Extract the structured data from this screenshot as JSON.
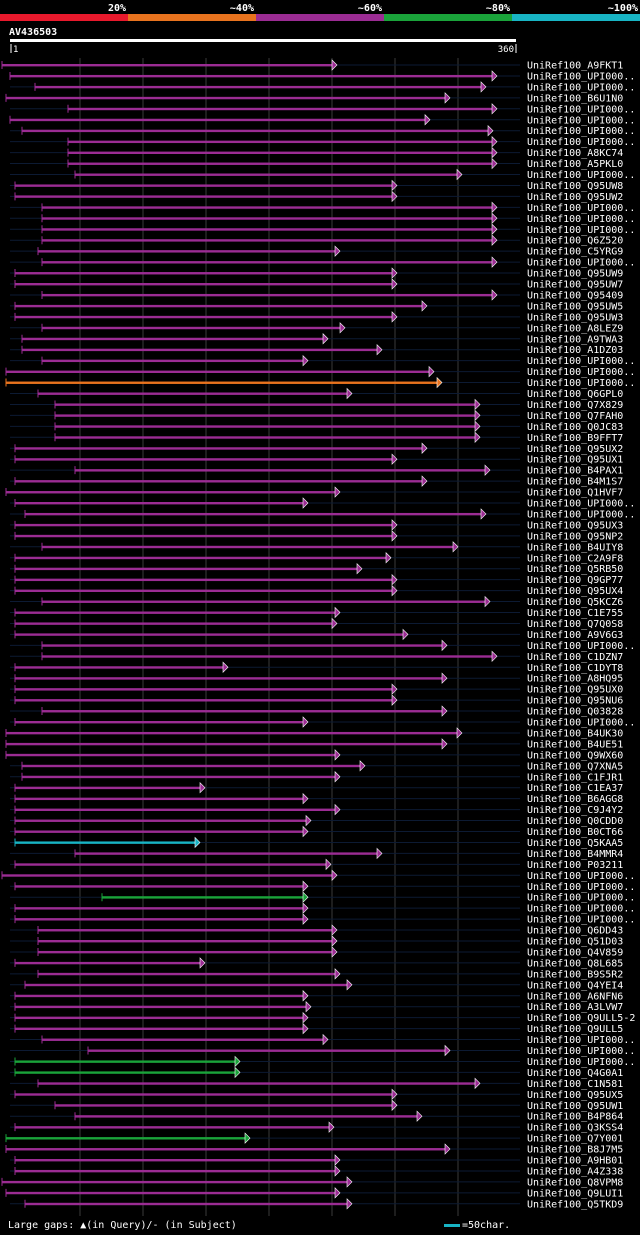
{
  "query_id": "AV436503",
  "identity_legend": {
    "labels": [
      "20%",
      "~40%",
      "~60%",
      "~80%",
      "~100%"
    ],
    "colors": [
      "#e8192c",
      "#e8731e",
      "#9b2c93",
      "#1aa33a",
      "#18b4c4"
    ]
  },
  "ruler": {
    "start_label": "1",
    "end_label": "360"
  },
  "footer": {
    "large_gaps_text": "Large gaps: ▲(in Query)/- (in Subject)",
    "scale_text": "=50char."
  },
  "chart_data": {
    "type": "alignment",
    "query_length": 360,
    "hits": [
      {
        "name": "UniRef100_A9FKT1",
        "start": 2,
        "end": 337,
        "identity": "~60%"
      },
      {
        "name": "UniRef100_UPI000..",
        "start": 10,
        "end": 497,
        "identity": "~60%"
      },
      {
        "name": "UniRef100_UPI000..",
        "start": 35,
        "end": 486,
        "identity": "~60%"
      },
      {
        "name": "UniRef100_B6U1N0",
        "start": 6,
        "end": 450,
        "identity": "~60%"
      },
      {
        "name": "UniRef100_UPI000..",
        "start": 68,
        "end": 497,
        "identity": "~60%"
      },
      {
        "name": "UniRef100_UPI000..",
        "start": 10,
        "end": 430,
        "identity": "~60%"
      },
      {
        "name": "UniRef100_UPI000..",
        "start": 22,
        "end": 493,
        "identity": "~60%"
      },
      {
        "name": "UniRef100_UPI000..",
        "start": 68,
        "end": 497,
        "identity": "~60%"
      },
      {
        "name": "UniRef100_A8KC74",
        "start": 68,
        "end": 497,
        "identity": "~60%"
      },
      {
        "name": "UniRef100_A5PKL0",
        "start": 68,
        "end": 497,
        "identity": "~60%"
      },
      {
        "name": "UniRef100_UPI000..",
        "start": 75,
        "end": 462,
        "identity": "~60%"
      },
      {
        "name": "UniRef100_Q95UW8",
        "start": 15,
        "end": 397,
        "identity": "~60%"
      },
      {
        "name": "UniRef100_Q95UW2",
        "start": 15,
        "end": 397,
        "identity": "~60%"
      },
      {
        "name": "UniRef100_UPI000..",
        "start": 42,
        "end": 497,
        "identity": "~60%"
      },
      {
        "name": "UniRef100_UPI000..",
        "start": 42,
        "end": 497,
        "identity": "~60%"
      },
      {
        "name": "UniRef100_UPI000..",
        "start": 42,
        "end": 497,
        "identity": "~60%"
      },
      {
        "name": "UniRef100_Q6Z520",
        "start": 42,
        "end": 497,
        "identity": "~60%"
      },
      {
        "name": "UniRef100_C5YRG9",
        "start": 38,
        "end": 340,
        "identity": "~60%"
      },
      {
        "name": "UniRef100_UPI000..",
        "start": 42,
        "end": 497,
        "identity": "~60%"
      },
      {
        "name": "UniRef100_Q95UW9",
        "start": 15,
        "end": 397,
        "identity": "~60%"
      },
      {
        "name": "UniRef100_Q95UW7",
        "start": 15,
        "end": 397,
        "identity": "~60%"
      },
      {
        "name": "UniRef100_Q95409",
        "start": 42,
        "end": 497,
        "identity": "~60%"
      },
      {
        "name": "UniRef100_Q95UW5",
        "start": 15,
        "end": 427,
        "identity": "~60%"
      },
      {
        "name": "UniRef100_Q95UW3",
        "start": 15,
        "end": 397,
        "identity": "~60%"
      },
      {
        "name": "UniRef100_A8LEZ9",
        "start": 42,
        "end": 345,
        "identity": "~60%"
      },
      {
        "name": "UniRef100_A9TWA3",
        "start": 22,
        "end": 328,
        "identity": "~60%"
      },
      {
        "name": "UniRef100_A1DZ03",
        "start": 22,
        "end": 382,
        "identity": "~60%"
      },
      {
        "name": "UniRef100_UPI000..",
        "start": 42,
        "end": 308,
        "identity": "~60%"
      },
      {
        "name": "UniRef100_UPI000..",
        "start": 6,
        "end": 434,
        "identity": "~60%"
      },
      {
        "name": "UniRef100_UPI000..",
        "start": 6,
        "end": 442,
        "identity": "~40%"
      },
      {
        "name": "UniRef100_Q6GPL0",
        "start": 38,
        "end": 352,
        "identity": "~60%"
      },
      {
        "name": "UniRef100_Q7X829",
        "start": 55,
        "end": 480,
        "identity": "~60%"
      },
      {
        "name": "UniRef100_Q7FAH0",
        "start": 55,
        "end": 480,
        "identity": "~60%"
      },
      {
        "name": "UniRef100_Q0JC83",
        "start": 55,
        "end": 480,
        "identity": "~60%"
      },
      {
        "name": "UniRef100_B9FFT7",
        "start": 55,
        "end": 480,
        "identity": "~60%"
      },
      {
        "name": "UniRef100_Q95UX2",
        "start": 15,
        "end": 427,
        "identity": "~60%"
      },
      {
        "name": "UniRef100_Q95UX1",
        "start": 15,
        "end": 397,
        "identity": "~60%"
      },
      {
        "name": "UniRef100_B4PAX1",
        "start": 75,
        "end": 490,
        "identity": "~60%"
      },
      {
        "name": "UniRef100_B4M1S7",
        "start": 15,
        "end": 427,
        "identity": "~60%"
      },
      {
        "name": "UniRef100_Q1HVF7",
        "start": 6,
        "end": 340,
        "identity": "~60%"
      },
      {
        "name": "UniRef100_UPI000..",
        "start": 15,
        "end": 308,
        "identity": "~60%"
      },
      {
        "name": "UniRef100_UPI000..",
        "start": 25,
        "end": 486,
        "identity": "~60%"
      },
      {
        "name": "UniRef100_Q95UX3",
        "start": 15,
        "end": 397,
        "identity": "~60%"
      },
      {
        "name": "UniRef100_Q95NP2",
        "start": 15,
        "end": 397,
        "identity": "~60%"
      },
      {
        "name": "UniRef100_B4UIY8",
        "start": 42,
        "end": 458,
        "identity": "~60%"
      },
      {
        "name": "UniRef100_C2A9F8",
        "start": 15,
        "end": 391,
        "identity": "~60%"
      },
      {
        "name": "UniRef100_Q5RB50",
        "start": 15,
        "end": 362,
        "identity": "~60%"
      },
      {
        "name": "UniRef100_Q9GP77",
        "start": 15,
        "end": 397,
        "identity": "~60%"
      },
      {
        "name": "UniRef100_Q95UX4",
        "start": 15,
        "end": 397,
        "identity": "~60%"
      },
      {
        "name": "UniRef100_Q5KCZ6",
        "start": 42,
        "end": 490,
        "identity": "~60%"
      },
      {
        "name": "UniRef100_C1E755",
        "start": 15,
        "end": 340,
        "identity": "~60%"
      },
      {
        "name": "UniRef100_Q7Q0S8",
        "start": 15,
        "end": 337,
        "identity": "~60%"
      },
      {
        "name": "UniRef100_A9V6G3",
        "start": 15,
        "end": 408,
        "identity": "~60%"
      },
      {
        "name": "UniRef100_UPI000..",
        "start": 42,
        "end": 447,
        "identity": "~60%"
      },
      {
        "name": "UniRef100_C1DZN7",
        "start": 42,
        "end": 497,
        "identity": "~60%"
      },
      {
        "name": "UniRef100_C1DYT8",
        "start": 15,
        "end": 228,
        "identity": "~60%"
      },
      {
        "name": "UniRef100_A8HQ95",
        "start": 15,
        "end": 447,
        "identity": "~60%"
      },
      {
        "name": "UniRef100_Q95UX0",
        "start": 15,
        "end": 397,
        "identity": "~60%"
      },
      {
        "name": "UniRef100_Q95NU6",
        "start": 15,
        "end": 397,
        "identity": "~60%"
      },
      {
        "name": "UniRef100_Q03828",
        "start": 42,
        "end": 447,
        "identity": "~60%"
      },
      {
        "name": "UniRef100_UPI000..",
        "start": 15,
        "end": 308,
        "identity": "~60%"
      },
      {
        "name": "UniRef100_B4UK30",
        "start": 6,
        "end": 462,
        "identity": "~60%"
      },
      {
        "name": "UniRef100_B4UE51",
        "start": 6,
        "end": 447,
        "identity": "~60%"
      },
      {
        "name": "UniRef100_Q9WX60",
        "start": 6,
        "end": 340,
        "identity": "~60%"
      },
      {
        "name": "UniRef100_Q7XNA5",
        "start": 22,
        "end": 365,
        "identity": "~60%"
      },
      {
        "name": "UniRef100_C1FJR1",
        "start": 22,
        "end": 340,
        "identity": "~60%"
      },
      {
        "name": "UniRef100_C1EA37",
        "start": 15,
        "end": 205,
        "identity": "~60%"
      },
      {
        "name": "UniRef100_B6AGG8",
        "start": 15,
        "end": 308,
        "identity": "~60%"
      },
      {
        "name": "UniRef100_C9J4Y2",
        "start": 15,
        "end": 340,
        "identity": "~60%"
      },
      {
        "name": "UniRef100_Q0CDD0",
        "start": 15,
        "end": 311,
        "identity": "~60%"
      },
      {
        "name": "UniRef100_B0CT66",
        "start": 15,
        "end": 308,
        "identity": "~60%"
      },
      {
        "name": "UniRef100_Q5KAA5",
        "start": 15,
        "end": 200,
        "identity": "~100%"
      },
      {
        "name": "UniRef100_B4MMR4",
        "start": 75,
        "end": 382,
        "identity": "~60%"
      },
      {
        "name": "UniRef100_P03211",
        "start": 15,
        "end": 331,
        "identity": "~60%"
      },
      {
        "name": "UniRef100_UPI000..",
        "start": 2,
        "end": 337,
        "identity": "~60%"
      },
      {
        "name": "UniRef100_UPI000..",
        "start": 15,
        "end": 308,
        "identity": "~60%"
      },
      {
        "name": "UniRef100_UPI000..",
        "start": 102,
        "end": 308,
        "identity": "~80%"
      },
      {
        "name": "UniRef100_UPI000..",
        "start": 15,
        "end": 308,
        "identity": "~60%"
      },
      {
        "name": "UniRef100_UPI000..",
        "start": 15,
        "end": 308,
        "identity": "~60%"
      },
      {
        "name": "UniRef100_Q6DD43",
        "start": 38,
        "end": 337,
        "identity": "~60%"
      },
      {
        "name": "UniRef100_Q51D03",
        "start": 38,
        "end": 337,
        "identity": "~60%"
      },
      {
        "name": "UniRef100_Q4V859",
        "start": 38,
        "end": 337,
        "identity": "~60%"
      },
      {
        "name": "UniRef100_Q8L685",
        "start": 15,
        "end": 205,
        "identity": "~60%"
      },
      {
        "name": "UniRef100_B9S5R2",
        "start": 38,
        "end": 340,
        "identity": "~60%"
      },
      {
        "name": "UniRef100_Q4YEI4",
        "start": 25,
        "end": 352,
        "identity": "~60%"
      },
      {
        "name": "UniRef100_A6NFN6",
        "start": 15,
        "end": 308,
        "identity": "~60%"
      },
      {
        "name": "UniRef100_A3LVW7",
        "start": 15,
        "end": 311,
        "identity": "~60%"
      },
      {
        "name": "UniRef100_Q9ULL5-2",
        "start": 15,
        "end": 308,
        "identity": "~60%"
      },
      {
        "name": "UniRef100_Q9ULL5",
        "start": 15,
        "end": 308,
        "identity": "~60%"
      },
      {
        "name": "UniRef100_UPI000..",
        "start": 42,
        "end": 328,
        "identity": "~60%"
      },
      {
        "name": "UniRef100_UPI000..",
        "start": 88,
        "end": 450,
        "identity": "~60%"
      },
      {
        "name": "UniRef100_UPI000..",
        "start": 15,
        "end": 240,
        "identity": "~80%"
      },
      {
        "name": "UniRef100_Q4G0A1",
        "start": 15,
        "end": 240,
        "identity": "~80%"
      },
      {
        "name": "UniRef100_C1N581",
        "start": 38,
        "end": 480,
        "identity": "~60%"
      },
      {
        "name": "UniRef100_Q95UX5",
        "start": 15,
        "end": 397,
        "identity": "~60%"
      },
      {
        "name": "UniRef100_Q95UW1",
        "start": 55,
        "end": 397,
        "identity": "~60%"
      },
      {
        "name": "UniRef100_B4P864",
        "start": 75,
        "end": 422,
        "identity": "~60%"
      },
      {
        "name": "UniRef100_Q3KSS4",
        "start": 15,
        "end": 334,
        "identity": "~60%"
      },
      {
        "name": "UniRef100_Q7Y001",
        "start": 6,
        "end": 250,
        "identity": "~80%"
      },
      {
        "name": "UniRef100_B8J7M5",
        "start": 6,
        "end": 450,
        "identity": "~60%"
      },
      {
        "name": "UniRef100_A9HB01",
        "start": 15,
        "end": 340,
        "identity": "~60%"
      },
      {
        "name": "UniRef100_A4Z338",
        "start": 15,
        "end": 340,
        "identity": "~60%"
      },
      {
        "name": "UniRef100_Q8VPM8",
        "start": 2,
        "end": 352,
        "identity": "~60%"
      },
      {
        "name": "UniRef100_Q9LUI1",
        "start": 6,
        "end": 340,
        "identity": "~60%"
      },
      {
        "name": "UniRef100_Q5TKD9",
        "start": 25,
        "end": 352,
        "identity": "~60%"
      }
    ]
  }
}
